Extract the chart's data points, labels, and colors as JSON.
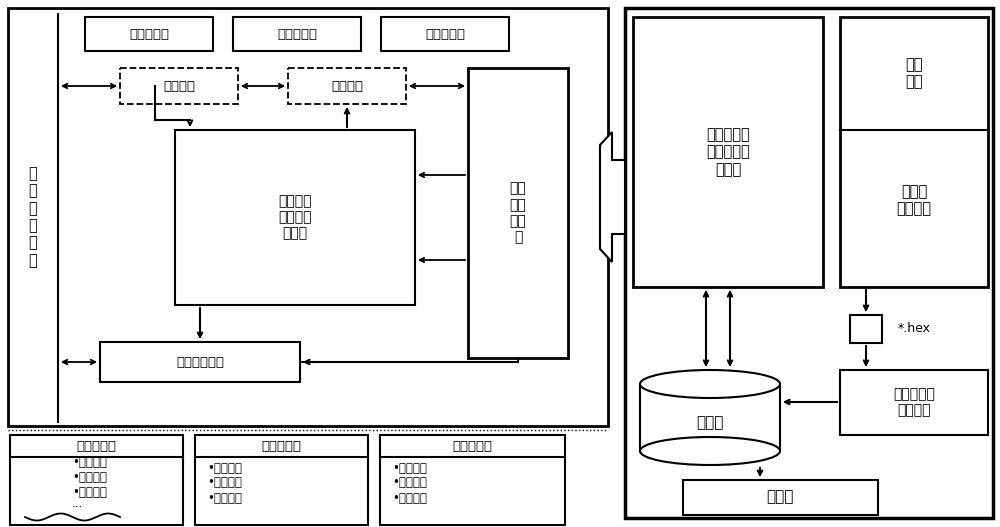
{
  "bg_color": "#ffffff",
  "fig_width": 10.0,
  "fig_height": 5.27,
  "texts": {
    "menu": "菜单栏组件",
    "toolbar": "工具栏组件",
    "statusbar": "状态栏组件",
    "matrix_transform": "矩阵变换",
    "connect_matrix": "连线矩阵",
    "download_module": "下载\n及通\n信模\n块",
    "circuit_window": "电路连线\n及在线模\n拟窗口",
    "auto_eval": "自动评价模块",
    "user_mgmt": "用\n户\n信\n息\n管\n理",
    "online_sim": "实验在线模\n拟及自动评\n价软件",
    "embed_prog": "植入\n程序",
    "mcu_tool": "单片机\n编程工具",
    "hex_file": "*.hex",
    "database": "数据库",
    "download_tool": "单片机程序\n下载工具",
    "serial_port": "串行口",
    "user_info_table": "用户信息表",
    "circuit_table": "电路连线表",
    "result_table": "实验成绩表",
    "user_info_items": "•用户编号\n•用户姓名\n•用户班级\n···",
    "circuit_items": "•电路编号\n•用户编号\n•连线状态",
    "result_items": "•实验编号\n•用户编号\n•实验成绩"
  }
}
